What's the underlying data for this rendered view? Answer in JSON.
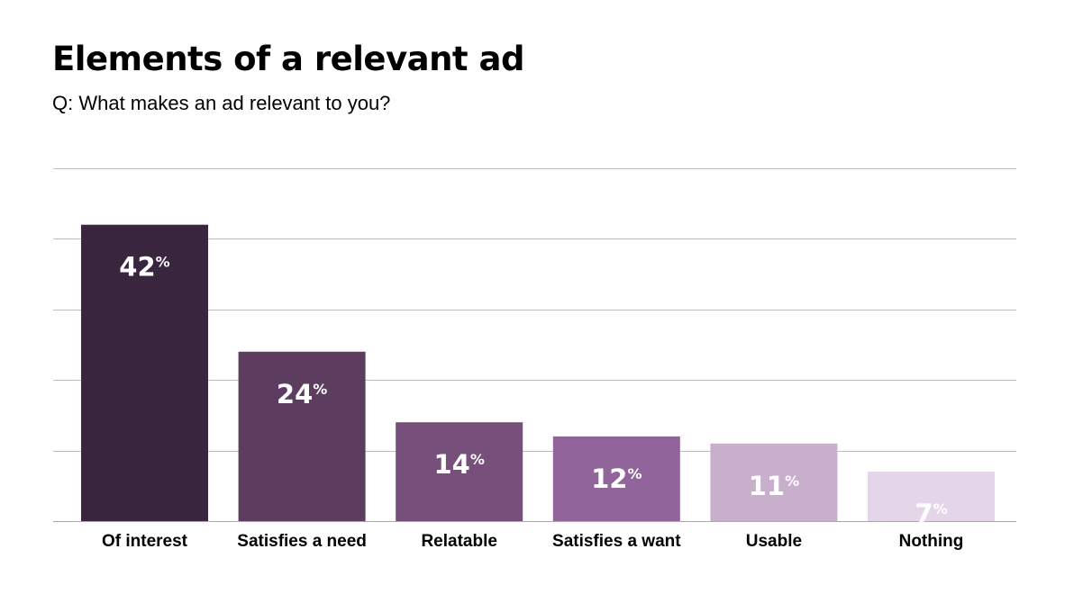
{
  "chart_data": {
    "type": "bar",
    "title": "Elements of a relevant ad",
    "subtitle": "Q: What makes an ad relevant to you?",
    "categories": [
      "Of interest",
      "Satisfies a need",
      "Relatable",
      "Satisfies a want",
      "Usable",
      "Nothing"
    ],
    "values": [
      42,
      24,
      14,
      12,
      11,
      7
    ],
    "value_suffix": "%",
    "ylim": [
      0,
      50
    ],
    "grid": true,
    "xlabel": "",
    "ylabel": "",
    "colors": [
      "#3a253f",
      "#5c3c5f",
      "#76507b",
      "#91659b",
      "#c8b0cc",
      "#e4d5e8"
    ]
  }
}
